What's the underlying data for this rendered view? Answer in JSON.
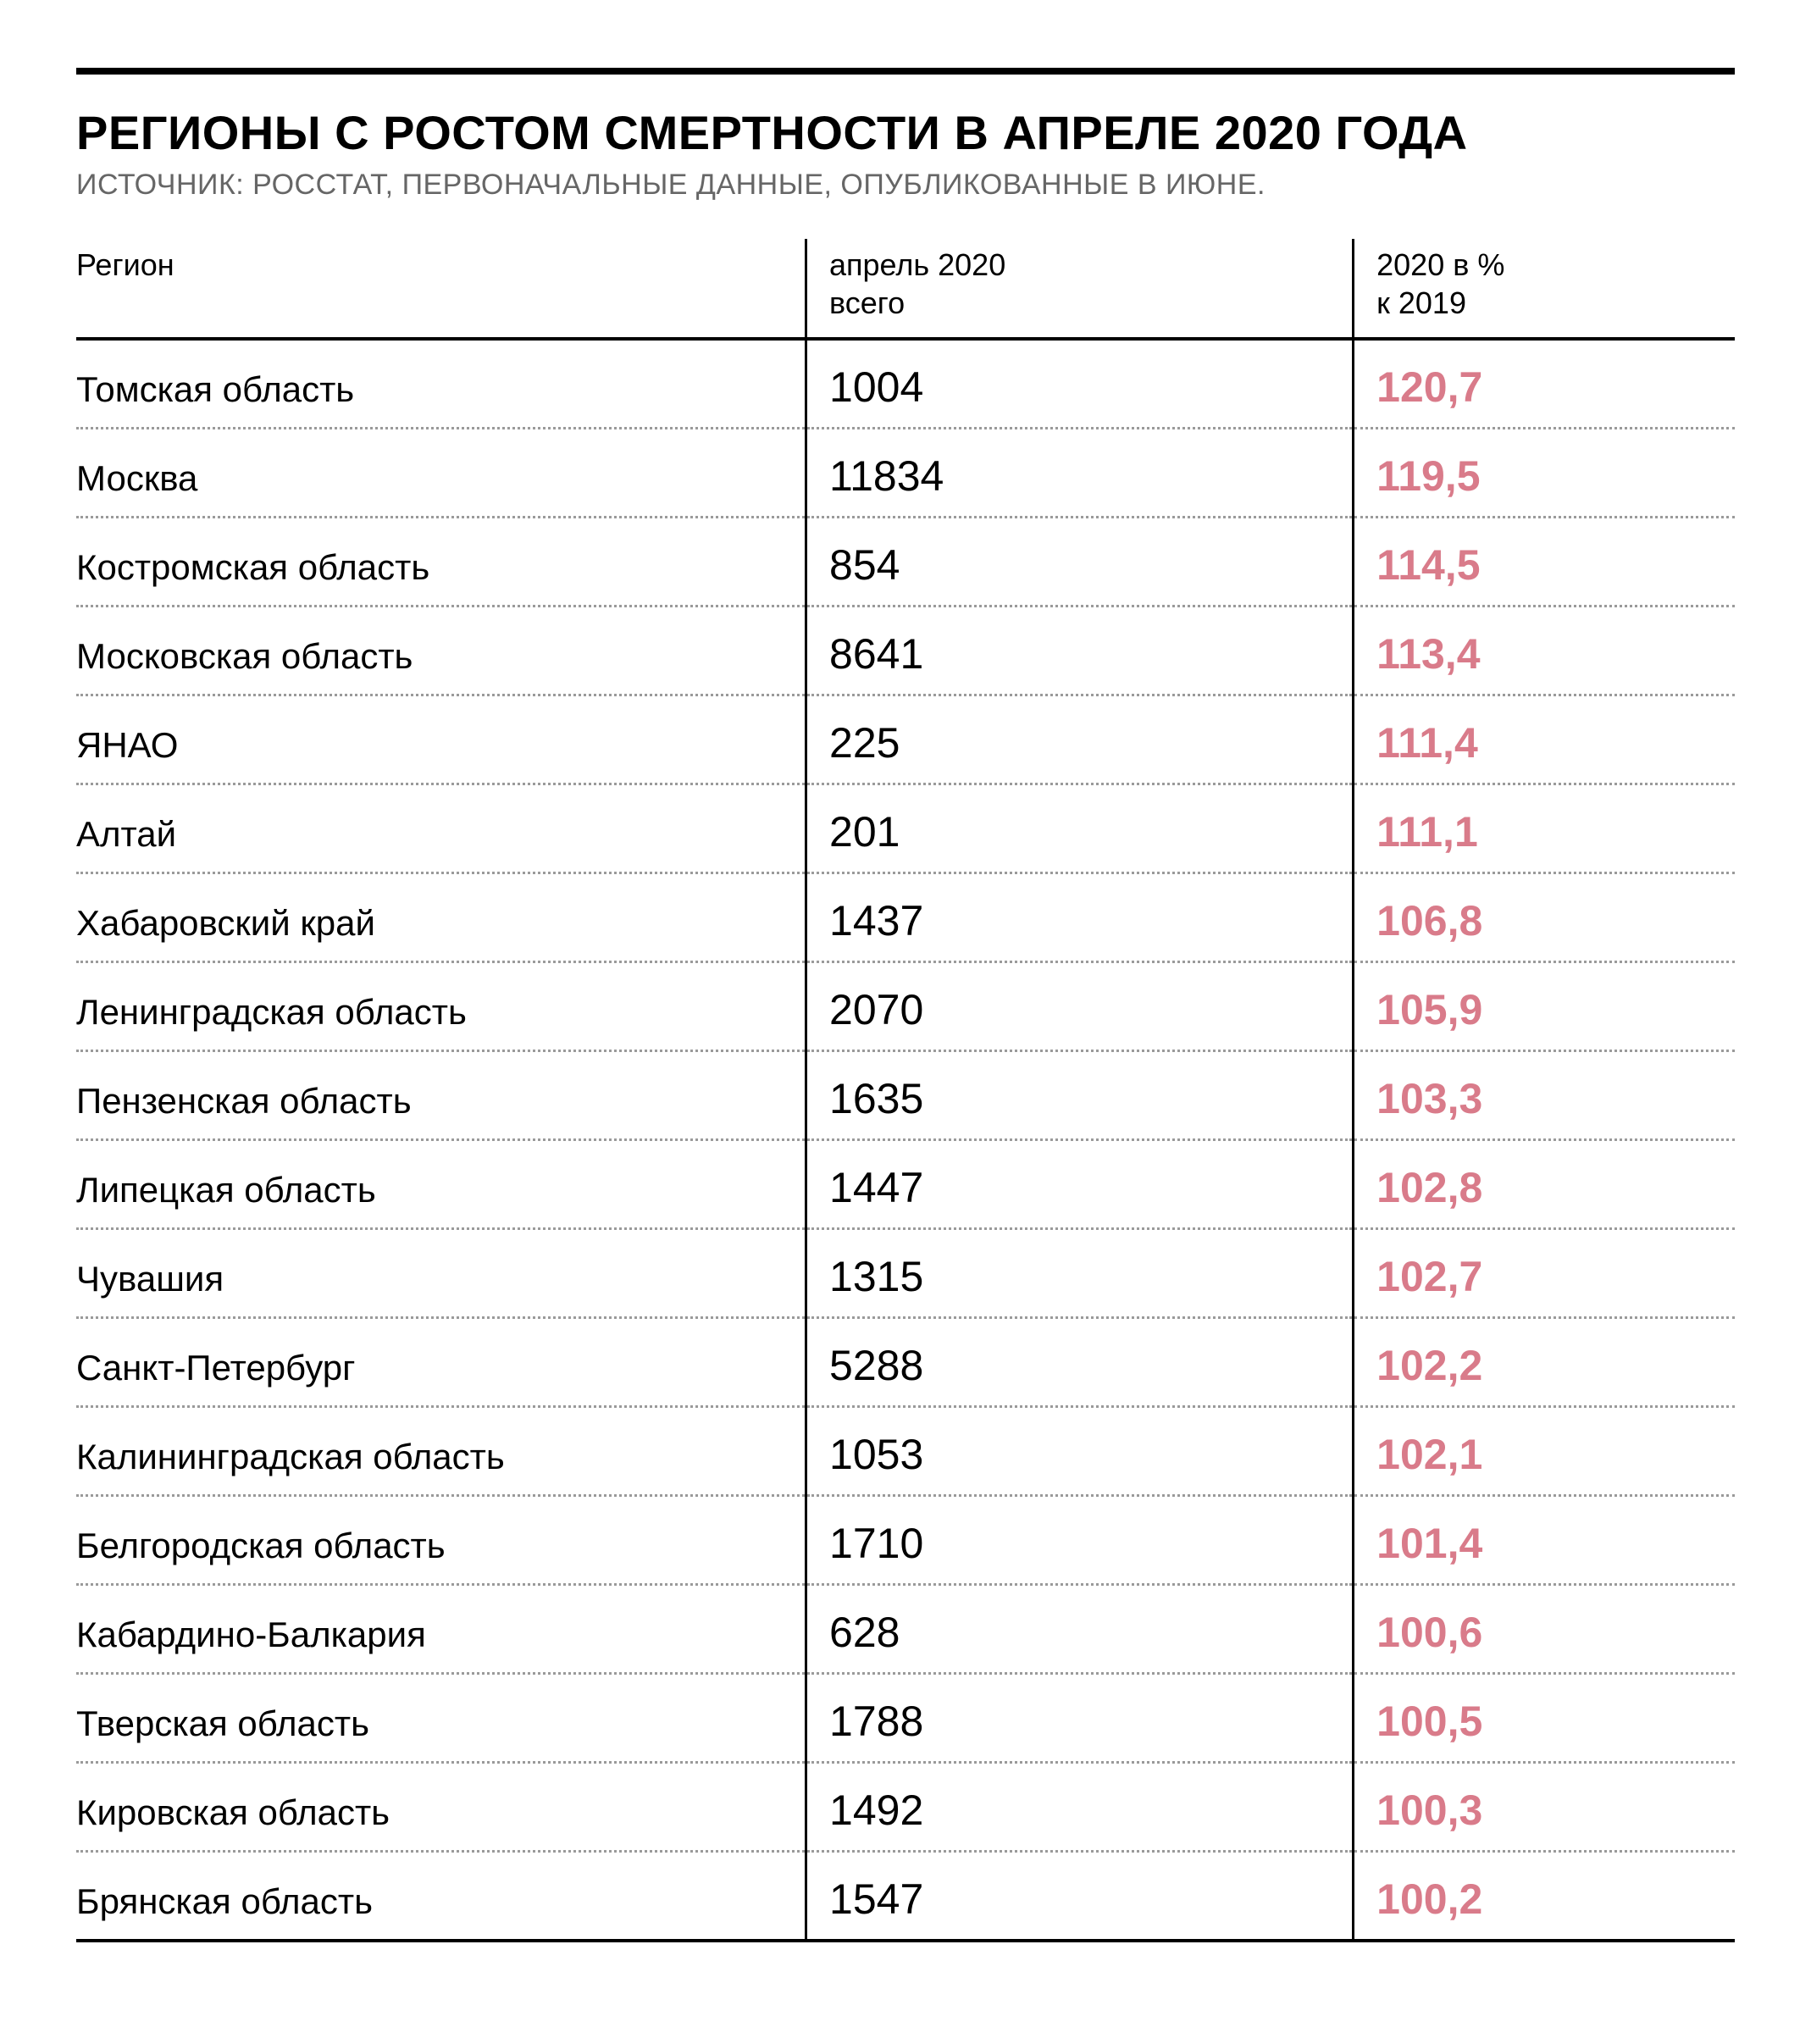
{
  "title": "РЕГИОНЫ С РОСТОМ СМЕРТНОСТИ В АПРЕЛЕ 2020 ГОДА",
  "source": "ИСТОЧНИК: РОССТАТ, ПЕРВОНАЧАЛЬНЫЕ ДАННЫЕ, ОПУБЛИКОВАННЫЕ В ИЮНЕ.",
  "columns": {
    "region": "Регион",
    "total": "апрель 2020\nвсего",
    "pct": "2020 в %\nк 2019"
  },
  "colors": {
    "text": "#000000",
    "muted": "#666666",
    "accent": "#d97b8a",
    "rule": "#000000",
    "dots": "#9a9a9a",
    "background": "#ffffff"
  },
  "table": {
    "type": "table",
    "column_widths_pct": [
      44,
      33,
      23
    ],
    "header_fontsize_pt": 27,
    "region_fontsize_pt": 32,
    "value_fontsize_pt": 38,
    "dotted_divider": true
  },
  "rows": [
    {
      "region": "Томская область",
      "total": "1004",
      "pct": "120,7"
    },
    {
      "region": "Москва",
      "total": "11834",
      "pct": "119,5"
    },
    {
      "region": "Костромская область",
      "total": "854",
      "pct": "114,5"
    },
    {
      "region": "Московская область",
      "total": "8641",
      "pct": "113,4"
    },
    {
      "region": "ЯНАО",
      "total": "225",
      "pct": "111,4"
    },
    {
      "region": "Алтай",
      "total": "201",
      "pct": "111,1"
    },
    {
      "region": "Хабаровский край",
      "total": "1437",
      "pct": "106,8"
    },
    {
      "region": "Ленинградская область",
      "total": "2070",
      "pct": "105,9"
    },
    {
      "region": "Пензенская область",
      "total": "1635",
      "pct": "103,3"
    },
    {
      "region": "Липецкая область",
      "total": "1447",
      "pct": "102,8"
    },
    {
      "region": "Чувашия",
      "total": "1315",
      "pct": "102,7"
    },
    {
      "region": "Санкт-Петербург",
      "total": "5288",
      "pct": "102,2"
    },
    {
      "region": "Калининградская область",
      "total": "1053",
      "pct": "102,1"
    },
    {
      "region": "Белгородская область",
      "total": "1710",
      "pct": "101,4"
    },
    {
      "region": "Кабардино-Балкария",
      "total": "628",
      "pct": "100,6"
    },
    {
      "region": "Тверская область",
      "total": "1788",
      "pct": "100,5"
    },
    {
      "region": "Кировская область",
      "total": "1492",
      "pct": "100,3"
    },
    {
      "region": "Брянская область",
      "total": "1547",
      "pct": "100,2"
    }
  ]
}
